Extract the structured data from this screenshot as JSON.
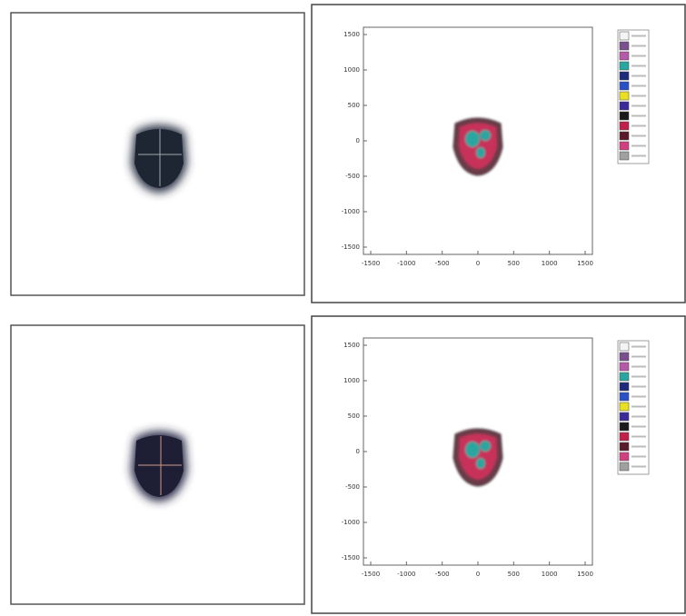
{
  "panels": [
    {
      "xticks": [
        -1500,
        -1000,
        -500,
        0,
        500,
        1000,
        1500
      ],
      "yticks": [
        1500,
        1000,
        500,
        0,
        -500,
        -1000,
        -1500
      ]
    },
    {
      "xticks": [
        -1500,
        -1000,
        -500,
        0,
        500,
        1000,
        1500
      ],
      "yticks": [
        1500,
        1000,
        500,
        0,
        -500,
        -1000,
        -1500
      ]
    }
  ]
}
